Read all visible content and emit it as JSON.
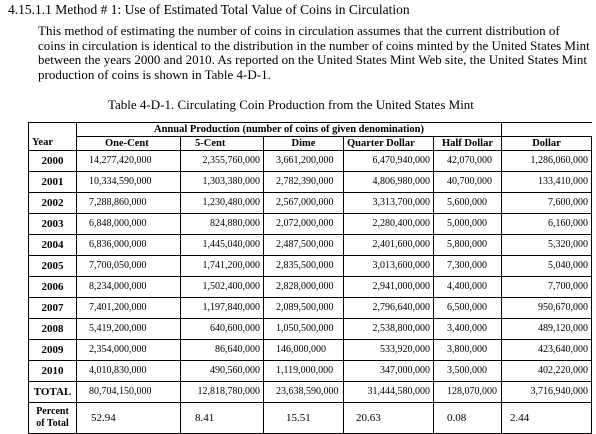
{
  "heading": "4.15.1.1 Method # 1:  Use of Estimated Total Value of Coins in Circulation",
  "paragraph": "This method of estimating the number of coins in circulation assumes that the current distribution of coins in circulation is identical to the distribution in the number of coins minted by the United States Mint between the years 2000 and 2010.  As reported on the United States Mint Web site, the United States Mint production of coins is shown in Table 4-D-1.",
  "caption": "Table 4-D-1.   Circulating Coin Production from the United States Mint",
  "table": {
    "group_header": "Annual Production (number of coins of given denomination)",
    "columns": [
      "Year",
      "One-Cent",
      "5-Cent",
      "Dime",
      "Quarter Dollar",
      "Half Dollar",
      "Dollar"
    ],
    "rows": [
      [
        "2000",
        "14,277,420,000",
        "2,355,760,000",
        "3,661,200,000",
        "6,470,940,000",
        "42,070,000",
        "1,286,060,000"
      ],
      [
        "2001",
        "10,334,590,000",
        "1,303,380,000",
        "2,782,390,000",
        "4,806,980,000",
        "40,700,000",
        "133,410,000"
      ],
      [
        "2002",
        "7,288,860,000",
        "1,230,480,000",
        "2,567,000,000",
        "3,313,700,000",
        "5,600,000",
        "7,600,000"
      ],
      [
        "2003",
        "6,848,000,000",
        "824,880,000",
        "2,072,000,000",
        "2,280,400,000",
        "5,000,000",
        "6,160,000"
      ],
      [
        "2004",
        "6,836,000,000",
        "1,445,040,000",
        "2,487,500,000",
        "2,401,600,000",
        "5,800,000",
        "5,320,000"
      ],
      [
        "2005",
        "7,700,050,000",
        "1,741,200,000",
        "2,835,500,000",
        "3,013,600,000",
        "7,300,000",
        "5,040,000"
      ],
      [
        "2006",
        "8,234,000,000",
        "1,502,400,000",
        "2,828,000,000",
        "2,941,000,000",
        "4,400,000",
        "7,700,000"
      ],
      [
        "2007",
        "7,401,200,000",
        "1,197,840,000",
        "2,089,500,000",
        "2,796,640,000",
        "6,500,000",
        "950,670,000"
      ],
      [
        "2008",
        "5,419,200,000",
        "640,600,000",
        "1,050,500,000",
        "2,538,800,000",
        "3,400,000",
        "489,120,000"
      ],
      [
        "2009",
        "2,354,000,000",
        "86,640,000",
        "146,000,000",
        "533,920,000",
        "3,800,000",
        "423,640,000"
      ],
      [
        "2010",
        "4,010,830,000",
        "490,560,000",
        "1,119,000,000",
        "347,000,000",
        "3,500,000",
        "402,220,000"
      ],
      [
        "TOTAL",
        "80,704,150,000",
        "12,818,780,000",
        "23,638,590,000",
        "31,444,580,000",
        "128,070,000",
        "3,716,940,000"
      ]
    ],
    "percent_label_line1": "Percent",
    "percent_label_line2": "of Total",
    "percent_values": [
      "52.94",
      "8.41",
      "15.51",
      "20.63",
      "0.08",
      "2.44"
    ]
  }
}
